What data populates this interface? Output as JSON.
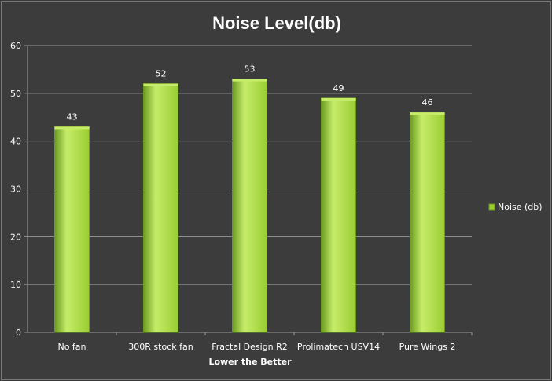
{
  "chart_data": {
    "type": "bar",
    "title": "Noise Level(db)",
    "xlabel": "Lower the Better",
    "ylabel": "",
    "categories": [
      "No fan",
      "300R stock fan",
      "Fractal Design R2",
      "Prolimatech USV14",
      "Pure Wings 2"
    ],
    "series": [
      {
        "name": "Noise (db)",
        "values": [
          43,
          52,
          53,
          49,
          46
        ]
      }
    ],
    "ylim": [
      0,
      60
    ],
    "yticks": [
      0,
      10,
      20,
      30,
      40,
      50,
      60
    ],
    "grid": true,
    "legend": "right",
    "data_labels": true,
    "colors": {
      "background": "#3c3c3c",
      "bar": "#9acd32",
      "bar_light": "#c6ec6a",
      "bar_dark": "#6a9a1f",
      "grid": "#9a9a9a",
      "text": "#ffffff"
    }
  }
}
